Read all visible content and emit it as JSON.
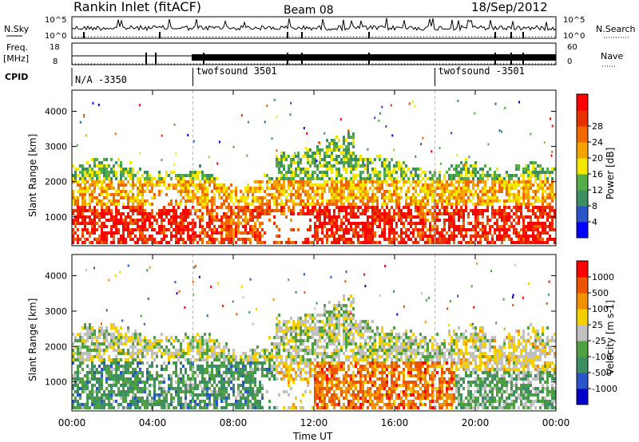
{
  "header": {
    "station": "Rankin Inlet (fitACF)",
    "beam": "Beam 08",
    "date": "18/Sep/2012"
  },
  "top_panels": {
    "nsky_label": "N.Sky",
    "nsky_ticks": [
      "10^5",
      "10^0"
    ],
    "nsearch_label": "N.Search",
    "nsearch_ticks": [
      "10^5",
      "10^0"
    ],
    "freq_label_1": "Freq.",
    "freq_label_2": "[MHz]",
    "freq_ticks": [
      "18",
      "8"
    ],
    "nave_label": "Nave",
    "nave_ticks": [
      "60",
      "0"
    ],
    "cpid_label": "CPID",
    "cpid_segments": [
      {
        "label": "N/A -3350",
        "start_hr": 0.0
      },
      {
        "label": "twofsound 3501",
        "start_hr": 6.0
      },
      {
        "label": "twofsound -3501",
        "start_hr": 18.0
      }
    ]
  },
  "chart_data": [
    {
      "type": "heatmap",
      "quantity": "Power",
      "colorbar_label": "Power [dB]",
      "ylabel": "Slant Range [km]",
      "xlim_hours": [
        0,
        24
      ],
      "ylim_km": [
        180,
        4600
      ],
      "yticks": [
        "1000",
        "2000",
        "3000",
        "4000"
      ],
      "colorbar_ticks": [
        "4",
        "8",
        "12",
        "16",
        "20",
        "24",
        "28"
      ],
      "colorscale": [
        "#0000ff",
        "#2a55c8",
        "#3d8f63",
        "#56ad46",
        "#f5e700",
        "#f3a400",
        "#f06800",
        "#e83000",
        "#ff0000"
      ]
    },
    {
      "type": "heatmap",
      "quantity": "Velocity",
      "colorbar_label": "Velocity [m s-1]",
      "ylabel": "Slant Range [km]",
      "xlim_hours": [
        0,
        24
      ],
      "ylim_km": [
        180,
        4600
      ],
      "yticks": [
        "1000",
        "2000",
        "3000",
        "4000"
      ],
      "colorbar_ticks": [
        "1000",
        "500",
        "100",
        "25",
        "-25",
        "-100",
        "-500",
        "-1000"
      ],
      "colorscale": [
        "#0000c8",
        "#2a55c8",
        "#3d8f63",
        "#4fa040",
        "#c0c0c0",
        "#f5d000",
        "#f39000",
        "#ec5400",
        "#ff0000"
      ]
    }
  ],
  "x_axis": {
    "label": "Time UT",
    "ticks": [
      "00:00",
      "04:00",
      "08:00",
      "12:00",
      "16:00",
      "20:00",
      "00:00"
    ]
  }
}
